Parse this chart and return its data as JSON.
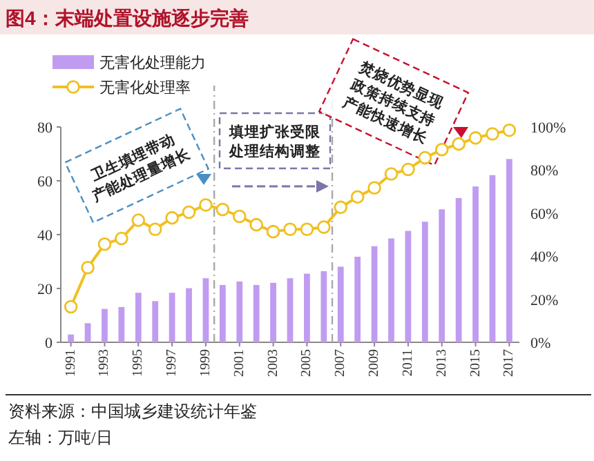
{
  "chart_data": {
    "type": "bar",
    "title": "图4：末端处置设施逐步完善",
    "x": [
      1991,
      1992,
      1993,
      1994,
      1995,
      1996,
      1997,
      1998,
      1999,
      2000,
      2001,
      2002,
      2003,
      2004,
      2005,
      2006,
      2007,
      2008,
      2009,
      2010,
      2011,
      2012,
      2013,
      2014,
      2015,
      2016,
      2017
    ],
    "xlim": [
      1990.4,
      2017.6
    ],
    "xticks": [
      1991,
      1993,
      1995,
      1997,
      1999,
      2001,
      2003,
      2005,
      2007,
      2009,
      2011,
      2013,
      2015,
      2017
    ],
    "ylim": [
      0,
      80
    ],
    "yticks": [
      0,
      20,
      40,
      60,
      80
    ],
    "y2lim": [
      0,
      100
    ],
    "y2ticks": [
      {
        "value": 0,
        "label": "0%"
      },
      {
        "value": 20,
        "label": "20%"
      },
      {
        "value": 40,
        "label": "40%"
      },
      {
        "value": 60,
        "label": "60%"
      },
      {
        "value": 80,
        "label": "80%"
      },
      {
        "value": 100,
        "label": "100%"
      }
    ],
    "series": [
      {
        "name": "无害化处理能力",
        "color": "#c09cf0",
        "values": [
          2.9,
          7.1,
          12.4,
          13.1,
          18.4,
          15.3,
          18.4,
          20.1,
          23.8,
          21.3,
          22.6,
          21.3,
          22.1,
          23.8,
          25.5,
          26.4,
          28.1,
          31.8,
          35.7,
          38.6,
          41.4,
          44.8,
          49.4,
          53.6,
          57.9,
          62.1,
          68.1
        ]
      },
      {
        "name": "无害化处理率",
        "type": "line",
        "axis": "y2",
        "color": "#f0c020",
        "marker": "circle",
        "values": [
          16.5,
          34.7,
          45.6,
          48.2,
          56.7,
          52.5,
          57.8,
          60.4,
          63.8,
          61.7,
          58.5,
          54.6,
          51.4,
          52.5,
          52.5,
          53.5,
          62.7,
          67.5,
          71.7,
          78.2,
          80.3,
          85.7,
          89.5,
          92.1,
          94.9,
          96.8,
          98.5
        ]
      }
    ],
    "ref_lines": [
      {
        "axis": "x",
        "value": 1999.5,
        "color": "#a8a8a8",
        "line_style": "dashed"
      },
      {
        "axis": "x",
        "value": 2006.5,
        "color": "#a8a8a8",
        "line_style": "dashed"
      }
    ],
    "annotations": [
      "卫生填埋带动产能处理量增长",
      "填埋扩张受限处理结构调整",
      "焚烧优势显现政策持续支持产能快速增长",
      "资料来源：中国城乡建设统计年鉴",
      "左轴：万吨/日"
    ],
    "legend": "top left",
    "grid": false
  }
}
